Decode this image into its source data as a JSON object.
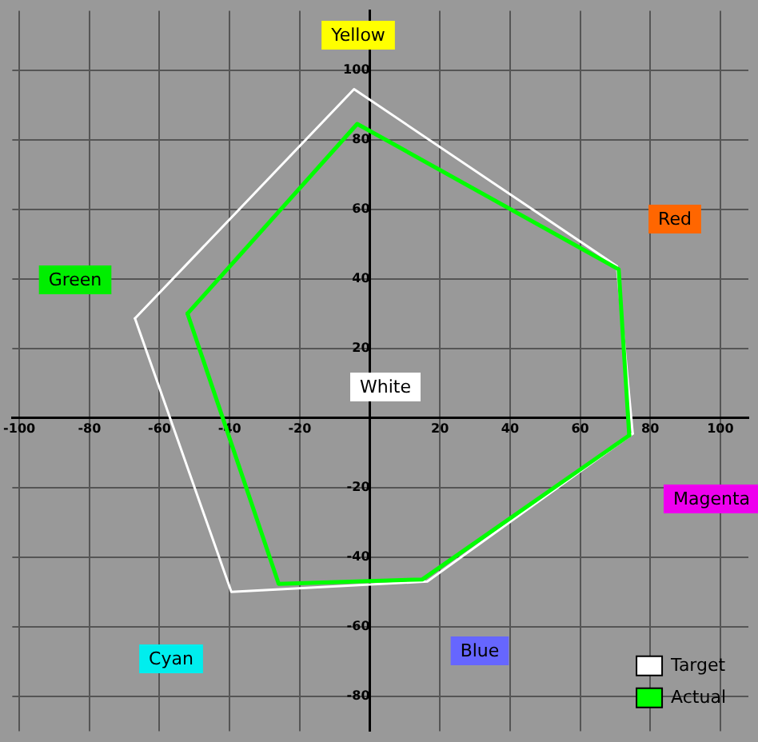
{
  "chart_data": {
    "type": "line",
    "xlim": [
      -102,
      108
    ],
    "ylim": [
      -90,
      117
    ],
    "xticks": [
      -100,
      -80,
      -60,
      -40,
      -20,
      {
        "value": 0,
        "label": null
      },
      20,
      40,
      60,
      80,
      100
    ],
    "yticks": [
      -80,
      -60,
      -40,
      -20,
      {
        "value": 0,
        "label": null
      },
      20,
      40,
      60,
      80,
      100
    ],
    "grid": true,
    "legend": "bottom right",
    "marker": "none",
    "line_style": "solid",
    "series": [
      {
        "name": "Target",
        "color": "#ffffff",
        "x": [
          -67,
          -4.5,
          70.5,
          75
        ],
        "values": [
          28.6,
          94.5,
          43.6,
          -4.5
        ]
      },
      {
        "color": "#ffffff",
        "x": [
          -67,
          -39.5,
          16.4,
          75
        ],
        "values": [
          28.6,
          -50,
          -47,
          -4.5
        ]
      },
      {
        "name": "Actual",
        "color": "#00ff00",
        "x": [
          -52,
          -3.6,
          71,
          74
        ],
        "values": [
          30,
          84.5,
          42.7,
          -5
        ]
      },
      {
        "color": "#00ff00",
        "x": [
          -52,
          -26,
          15,
          74
        ],
        "values": [
          30,
          -47.7,
          -46.4,
          -5
        ]
      }
    ],
    "annotations": [
      "Yellow",
      "Red",
      "Green",
      "White",
      "Magenta",
      "Cyan",
      "Blue"
    ]
  }
}
